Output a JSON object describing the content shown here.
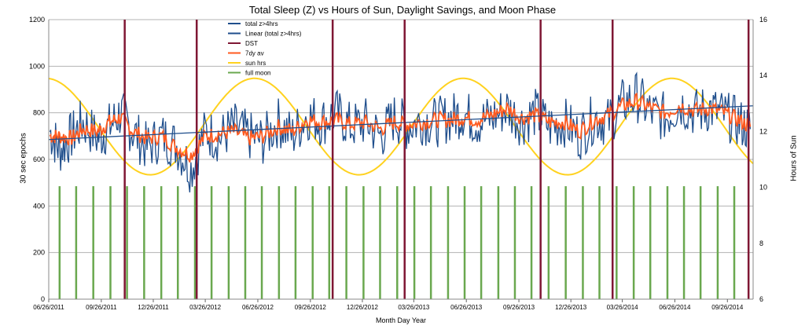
{
  "chart_data": {
    "type": "line",
    "title": "Total Sleep (Z) vs Hours of Sun, Daylight Savings, and Moon Phase",
    "xlabel": "Month Day Year",
    "ylabel_left": "30 sec epochs",
    "ylabel_right": "Hours of Sun",
    "ylim_left": [
      0,
      1200
    ],
    "ylim_right": [
      6,
      16
    ],
    "yticks_left": [
      0,
      200,
      400,
      600,
      800,
      1000,
      1200
    ],
    "yticks_right": [
      6,
      8,
      10,
      12,
      14,
      16
    ],
    "x_start": "06/26/2011",
    "x_end": "11/10/2014",
    "xticks": [
      "06/26/2011",
      "09/26/2011",
      "12/26/2011",
      "03/26/2012",
      "06/26/2012",
      "09/26/2012",
      "12/26/2012",
      "03/26/2013",
      "06/26/2013",
      "09/26/2013",
      "12/26/2013",
      "03/26/2014",
      "06/26/2014",
      "09/26/2014"
    ],
    "grid": "horizontal",
    "legend_position": "top-center",
    "legend": [
      {
        "label": "total z>4hrs",
        "color": "#1f4e8c"
      },
      {
        "label": "Linear (total z>4hrs)",
        "color": "#1f4e8c"
      },
      {
        "label": "DST",
        "color": "#7f1734"
      },
      {
        "label": "7dy av",
        "color": "#ff5a1f"
      },
      {
        "label": "sun hrs",
        "color": "#ffd21f"
      },
      {
        "label": "full moon",
        "color": "#6aa84f"
      }
    ],
    "dst_dates": [
      "11/06/2011",
      "03/11/2012",
      "11/04/2012",
      "03/10/2013",
      "11/03/2013",
      "03/09/2014",
      "11/02/2014"
    ],
    "full_moon_height": 485,
    "full_moon_dates": [
      "07/15/2011",
      "08/13/2011",
      "09/12/2011",
      "10/12/2011",
      "11/10/2011",
      "12/10/2011",
      "01/09/2012",
      "02/07/2012",
      "03/08/2012",
      "04/06/2012",
      "05/06/2012",
      "06/04/2012",
      "07/03/2012",
      "08/02/2012",
      "08/31/2012",
      "09/30/2012",
      "10/29/2012",
      "11/28/2012",
      "12/28/2012",
      "01/26/2013",
      "02/25/2013",
      "03/27/2013",
      "04/25/2013",
      "05/25/2013",
      "06/23/2013",
      "07/22/2013",
      "08/21/2013",
      "09/19/2013",
      "10/18/2013",
      "11/17/2013",
      "12/17/2013",
      "01/16/2014",
      "02/14/2014",
      "03/16/2014",
      "04/15/2014",
      "05/14/2014",
      "06/13/2014",
      "07/12/2014",
      "08/10/2014",
      "09/09/2014",
      "10/08/2014"
    ],
    "trend_line": {
      "start": [
        "06/26/2011",
        685
      ],
      "end": [
        "11/10/2014",
        830
      ]
    },
    "sun_hours": {
      "min": 10.45,
      "max": 13.9,
      "longest_day": "06/21"
    },
    "sleep_series_note_free": true,
    "series_samples": {
      "total_z": {
        "dates": [
          "06/28/2011",
          "07/15/2011",
          "08/05/2011",
          "08/25/2011",
          "09/20/2011",
          "10/10/2011",
          "10/30/2011",
          "11/20/2011",
          "12/15/2011",
          "01/10/2012",
          "02/05/2012",
          "03/01/2012",
          "03/26/2012",
          "04/20/2012",
          "05/15/2012",
          "06/10/2012",
          "07/05/2012",
          "08/01/2012",
          "08/26/2012",
          "09/20/2012",
          "10/15/2012",
          "11/10/2012",
          "12/05/2012",
          "01/01/2013",
          "01/27/2013",
          "02/20/2013",
          "03/15/2013",
          "04/10/2013",
          "05/05/2013",
          "05/30/2013",
          "06/20/2013",
          "07/15/2013",
          "08/10/2013",
          "09/05/2013",
          "10/01/2013",
          "10/25/2013",
          "11/20/2013",
          "12/15/2013",
          "01/10/2014",
          "02/05/2014",
          "03/01/2014",
          "03/26/2014",
          "04/20/2014",
          "05/15/2014",
          "06/10/2014",
          "07/05/2014",
          "08/01/2014",
          "08/26/2014",
          "09/20/2014",
          "10/15/2014",
          "11/05/2014"
        ],
        "values": [
          720,
          640,
          700,
          760,
          690,
          740,
          800,
          720,
          650,
          700,
          660,
          560,
          720,
          690,
          740,
          700,
          680,
          760,
          700,
          790,
          760,
          800,
          740,
          760,
          700,
          780,
          740,
          770,
          760,
          780,
          800,
          760,
          780,
          820,
          760,
          800,
          740,
          760,
          700,
          780,
          760,
          840,
          870,
          800,
          780,
          840,
          800,
          820,
          790,
          760,
          730
        ]
      },
      "avg_7day": {
        "dates": [
          "06/28/2011",
          "07/15/2011",
          "08/05/2011",
          "08/25/2011",
          "09/20/2011",
          "10/10/2011",
          "10/30/2011",
          "11/20/2011",
          "12/15/2011",
          "01/10/2012",
          "02/05/2012",
          "03/01/2012",
          "03/26/2012",
          "04/20/2012",
          "05/15/2012",
          "06/10/2012",
          "07/05/2012",
          "08/01/2012",
          "08/26/2012",
          "09/20/2012",
          "10/15/2012",
          "11/10/2012",
          "12/05/2012",
          "01/01/2013",
          "01/27/2013",
          "02/20/2013",
          "03/15/2013",
          "04/10/2013",
          "05/05/2013",
          "05/30/2013",
          "06/20/2013",
          "07/15/2013",
          "08/10/2013",
          "09/05/2013",
          "10/01/2013",
          "10/25/2013",
          "11/20/2013",
          "12/15/2013",
          "01/10/2014",
          "02/05/2014",
          "03/01/2014",
          "03/26/2014",
          "04/20/2014",
          "05/15/2014",
          "06/10/2014",
          "07/05/2014",
          "08/01/2014",
          "08/26/2014",
          "09/20/2014",
          "10/15/2014",
          "11/05/2014"
        ],
        "values": [
          700,
          700,
          690,
          730,
          720,
          760,
          780,
          720,
          690,
          700,
          650,
          620,
          700,
          710,
          720,
          690,
          700,
          740,
          720,
          770,
          760,
          770,
          750,
          760,
          730,
          760,
          750,
          760,
          770,
          770,
          780,
          770,
          790,
          820,
          780,
          790,
          760,
          760,
          720,
          770,
          790,
          830,
          850,
          820,
          800,
          830,
          810,
          820,
          800,
          770,
          740
        ]
      }
    }
  }
}
